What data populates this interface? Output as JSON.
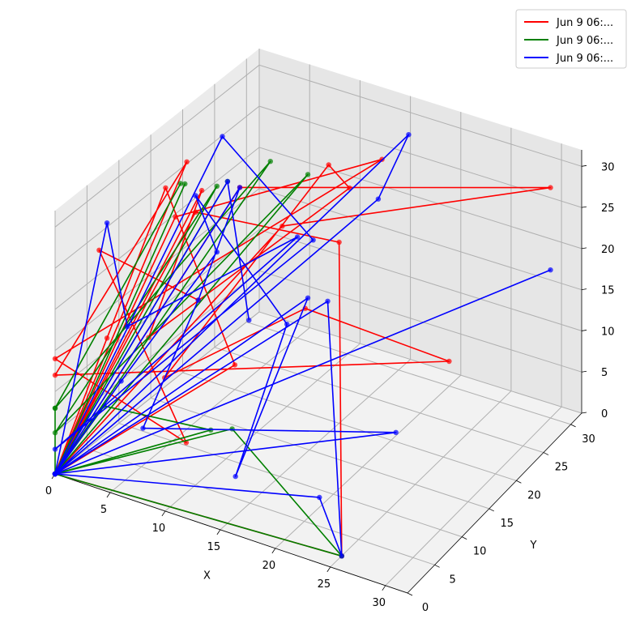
{
  "chart_data": {
    "type": "line",
    "projection": "3d",
    "xlabel": "X",
    "ylabel": "Y",
    "zlabel": "",
    "xlim": [
      0,
      32
    ],
    "ylim": [
      0,
      32
    ],
    "zlim": [
      0,
      32
    ],
    "xticks": [
      0,
      5,
      10,
      15,
      20,
      25,
      30
    ],
    "yticks": [
      0,
      5,
      10,
      15,
      20,
      25,
      30
    ],
    "zticks": [
      0,
      5,
      10,
      15,
      20,
      25,
      30
    ],
    "grid": true,
    "legend_position": "top-right",
    "series": [
      {
        "name": "Jun  9 06:...",
        "color": "#ff0000",
        "points": [
          [
            0,
            0,
            0
          ],
          [
            6,
            13,
            29
          ],
          [
            1,
            13,
            9
          ],
          [
            16,
            20,
            29
          ],
          [
            14,
            20,
            31
          ],
          [
            6,
            7,
            10
          ],
          [
            10,
            23,
            10
          ],
          [
            20,
            30,
            3
          ],
          [
            0,
            0,
            12
          ],
          [
            4,
            14,
            31
          ],
          [
            0,
            0,
            0
          ],
          [
            5,
            20,
            3
          ],
          [
            2,
            14,
            27
          ],
          [
            3,
            3,
            16
          ],
          [
            0,
            0,
            0
          ],
          [
            13,
            14,
            27
          ],
          [
            30,
            30,
            28
          ],
          [
            9,
            14,
            30
          ],
          [
            0,
            0,
            0
          ],
          [
            6,
            12,
            27
          ],
          [
            15,
            20,
            22
          ],
          [
            25,
            2,
            0
          ],
          [
            0,
            0,
            0
          ],
          [
            7,
            7,
            30
          ],
          [
            18,
            22,
            32
          ],
          [
            0,
            0,
            14
          ],
          [
            8,
            7,
            3
          ],
          [
            4,
            0,
            29
          ],
          [
            13,
            0,
            27
          ]
        ]
      },
      {
        "name": "Jun  9 06:...",
        "color": "#008000",
        "points": [
          [
            0,
            0,
            0
          ],
          [
            0,
            0,
            8
          ],
          [
            4,
            13,
            29
          ],
          [
            0,
            0,
            8
          ],
          [
            9,
            19,
            30
          ],
          [
            0,
            0,
            0
          ],
          [
            8,
            12,
            31
          ],
          [
            0,
            0,
            5
          ],
          [
            12,
            20,
            29
          ],
          [
            0,
            0,
            0
          ],
          [
            1,
            6,
            5
          ],
          [
            8,
            11,
            2
          ],
          [
            0,
            0,
            0
          ],
          [
            10,
            11,
            3
          ],
          [
            25,
            2,
            0
          ],
          [
            0,
            0,
            0
          ],
          [
            5,
            12,
            30
          ],
          [
            0,
            0,
            0
          ],
          [
            9,
            12,
            32
          ]
        ]
      },
      {
        "name": "Jun  9 06:...",
        "color": "#0000ff",
        "points": [
          [
            0,
            0,
            0
          ],
          [
            5,
            18,
            32
          ],
          [
            9,
            26,
            16
          ],
          [
            0,
            0,
            3
          ],
          [
            11,
            20,
            21
          ],
          [
            6,
            1,
            20
          ],
          [
            3,
            3,
            30
          ],
          [
            0,
            0,
            0
          ],
          [
            12,
            20,
            14
          ],
          [
            12,
            8,
            0
          ],
          [
            10,
            20,
            10
          ],
          [
            6,
            12,
            29
          ],
          [
            8,
            12,
            23
          ],
          [
            6,
            0,
            14
          ],
          [
            0,
            0,
            0
          ],
          [
            9,
            14,
            30
          ],
          [
            13,
            0,
            27
          ],
          [
            4,
            7,
            3
          ],
          [
            21,
            19,
            2
          ],
          [
            0,
            0,
            0
          ],
          [
            30,
            30,
            18
          ],
          [
            0,
            0,
            0
          ],
          [
            16,
            30,
            29
          ],
          [
            13,
            30,
            20
          ],
          [
            0,
            0,
            0
          ],
          [
            11,
            25,
            10
          ],
          [
            25,
            2,
            0
          ],
          [
            24,
            0,
            8
          ],
          [
            0,
            0,
            0
          ],
          [
            9,
            12,
            32
          ],
          [
            11,
            12,
            16
          ]
        ]
      }
    ]
  }
}
